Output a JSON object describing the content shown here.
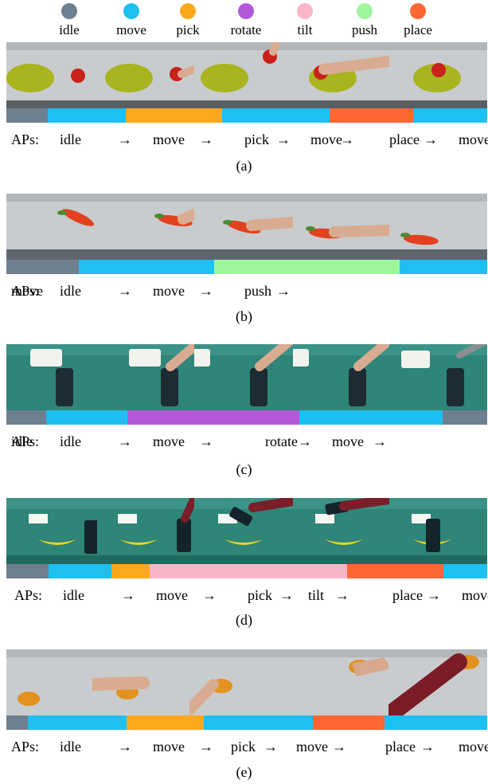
{
  "legend": [
    {
      "label": "idle",
      "color": "#6e7f8f"
    },
    {
      "label": "move",
      "color": "#1ec0f2"
    },
    {
      "label": "pick",
      "color": "#fba81d"
    },
    {
      "label": "rotate",
      "color": "#b359d8"
    },
    {
      "label": "tilt",
      "color": "#f9b6c8"
    },
    {
      "label": "push",
      "color": "#9ff59c"
    },
    {
      "label": "place",
      "color": "#fe6734"
    }
  ],
  "aps_prefix": "APs:",
  "arrow": "→",
  "panels": [
    {
      "caption": "(a)",
      "scene": "table-plate-apple",
      "sequence": [
        "idle",
        "move",
        "pick",
        "move",
        "place",
        "move"
      ],
      "segments": [
        {
          "action": "idle",
          "fraction": 0.086
        },
        {
          "action": "move",
          "fraction": 0.162
        },
        {
          "action": "pick",
          "fraction": 0.2
        },
        {
          "action": "move",
          "fraction": 0.225
        },
        {
          "action": "place",
          "fraction": 0.173
        },
        {
          "action": "move",
          "fraction": 0.154
        }
      ]
    },
    {
      "caption": "(b)",
      "scene": "table-carrot",
      "sequence": [
        "idle",
        "move",
        "push",
        "move"
      ],
      "segments": [
        {
          "action": "idle",
          "fraction": 0.15
        },
        {
          "action": "move",
          "fraction": 0.282
        },
        {
          "action": "push",
          "fraction": 0.386
        },
        {
          "action": "move",
          "fraction": 0.182
        }
      ]
    },
    {
      "caption": "(c)",
      "scene": "green-table-bottle-basket",
      "sequence": [
        "idle",
        "move",
        "rotate",
        "move",
        "idle"
      ],
      "segments": [
        {
          "action": "idle",
          "fraction": 0.082
        },
        {
          "action": "move",
          "fraction": 0.17
        },
        {
          "action": "rotate",
          "fraction": 0.358
        },
        {
          "action": "move",
          "fraction": 0.297
        },
        {
          "action": "idle",
          "fraction": 0.093
        }
      ]
    },
    {
      "caption": "(d)",
      "scene": "green-table-can-banana",
      "sequence": [
        "idle",
        "move",
        "pick",
        "tilt",
        "place",
        "move"
      ],
      "segments": [
        {
          "action": "idle",
          "fraction": 0.087
        },
        {
          "action": "move",
          "fraction": 0.131
        },
        {
          "action": "pick",
          "fraction": 0.08
        },
        {
          "action": "tilt",
          "fraction": 0.411
        },
        {
          "action": "place",
          "fraction": 0.2
        },
        {
          "action": "move",
          "fraction": 0.091
        }
      ]
    },
    {
      "caption": "(e)",
      "scene": "table-orange-toy",
      "sequence": [
        "idle",
        "move",
        "pick",
        "move",
        "place",
        "move"
      ],
      "segments": [
        {
          "action": "idle",
          "fraction": 0.045
        },
        {
          "action": "move",
          "fraction": 0.205
        },
        {
          "action": "pick",
          "fraction": 0.16
        },
        {
          "action": "move",
          "fraction": 0.228
        },
        {
          "action": "place",
          "fraction": 0.149
        },
        {
          "action": "move",
          "fraction": 0.213
        }
      ]
    }
  ]
}
